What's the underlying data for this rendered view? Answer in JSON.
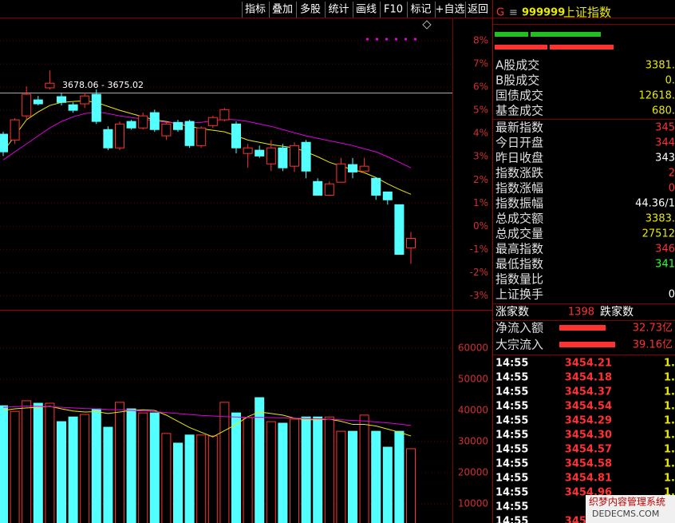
{
  "toolbar": [
    "指标",
    "叠加",
    "多股",
    "统计",
    "画线",
    "F10",
    "标记",
    "+自选",
    "返回"
  ],
  "chart_data": [
    {
      "type": "candlestick",
      "annotation": "3678.06 - 3675.02",
      "up_color": "#ff3232",
      "down_color": "#54ffff",
      "grid": true,
      "ylim": [
        -3.5,
        9
      ],
      "yticks": [
        {
          "value": 8,
          "label": "8%"
        },
        {
          "value": 7,
          "label": "7%"
        },
        {
          "value": 6,
          "label": "6%"
        },
        {
          "value": 5,
          "label": "5%"
        },
        {
          "value": 4,
          "label": "4%"
        },
        {
          "value": 3,
          "label": "3%"
        },
        {
          "value": 2,
          "label": "2%"
        },
        {
          "value": 1,
          "label": "1%"
        },
        {
          "value": 0,
          "label": "0%"
        },
        {
          "value": -1,
          "label": "-1%"
        },
        {
          "value": -2,
          "label": "-2%"
        },
        {
          "value": -3,
          "label": "-3%"
        }
      ],
      "open": [
        3.97,
        3.72,
        4.76,
        5.45,
        5.97,
        5.59,
        5.24,
        5.28,
        5.69,
        4.17,
        3.38,
        4.52,
        4.24,
        4.9,
        3.9,
        4.48,
        4.52,
        3.48,
        4.34,
        4.59,
        4.41,
        3.14,
        3.28,
        2.69,
        3.38,
        2.59,
        3.62,
        1.93,
        1.34,
        1.9,
        2.66,
        2.38,
        2.07,
        1.48,
        0.93,
        -0.93
      ],
      "close": [
        3.21,
        4.59,
        5.69,
        5.28,
        6.17,
        5.34,
        5.0,
        5.62,
        4.52,
        3.38,
        4.41,
        4.24,
        4.76,
        4.17,
        4.41,
        4.17,
        3.48,
        4.24,
        4.69,
        5.03,
        3.38,
        3.38,
        3.03,
        3.38,
        2.52,
        3.48,
        2.38,
        1.34,
        1.83,
        2.69,
        2.34,
        2.59,
        1.34,
        1.14,
        -1.21,
        -0.52
      ],
      "high": [
        4.07,
        4.66,
        6.03,
        5.62,
        6.72,
        5.76,
        5.34,
        5.76,
        5.9,
        4.31,
        4.52,
        4.59,
        4.9,
        5.03,
        4.48,
        4.59,
        4.59,
        4.31,
        4.76,
        5.1,
        4.52,
        3.55,
        3.48,
        3.72,
        3.55,
        3.62,
        3.72,
        2.07,
        1.93,
        2.95,
        2.95,
        2.95,
        2.07,
        1.48,
        0.93,
        -0.24
      ],
      "low": [
        3.03,
        3.55,
        4.59,
        5.21,
        5.9,
        5.21,
        4.9,
        5.1,
        4.41,
        3.28,
        3.28,
        4.17,
        4.17,
        4.07,
        3.72,
        4.07,
        3.38,
        3.38,
        4.24,
        4.52,
        3.14,
        2.52,
        2.95,
        2.38,
        2.38,
        2.34,
        2.07,
        1.34,
        1.34,
        1.9,
        2.07,
        2.38,
        1.14,
        0.93,
        -1.21,
        -1.62
      ],
      "series": [
        {
          "color": "#e8e800",
          "values": [
            3.21,
            3.9,
            4.59,
            4.93,
            5.21,
            5.34,
            5.38,
            5.41,
            5.34,
            5.17,
            5.0,
            4.86,
            4.72,
            4.59,
            4.52,
            4.41,
            4.31,
            4.21,
            4.14,
            4.07,
            3.9,
            3.72,
            3.62,
            3.52,
            3.45,
            3.38,
            3.21,
            3.0,
            2.76,
            2.59,
            2.45,
            2.31,
            2.1,
            1.83,
            1.59,
            1.38
          ]
        },
        {
          "color": "#e000e0",
          "values": [
            2.86,
            3.21,
            3.55,
            3.9,
            4.24,
            4.52,
            4.72,
            4.86,
            4.93,
            4.86,
            4.76,
            4.69,
            4.62,
            4.55,
            4.48,
            4.45,
            4.45,
            4.48,
            4.55,
            4.62,
            4.59,
            4.52,
            4.41,
            4.31,
            4.17,
            4.03,
            3.9,
            3.79,
            3.69,
            3.59,
            3.48,
            3.34,
            3.21,
            3.0,
            2.76,
            2.52
          ]
        }
      ]
    },
    {
      "type": "bar",
      "grid": true,
      "ylim": [
        0,
        70000
      ],
      "yticks": [
        60000,
        50000,
        40000,
        30000,
        20000,
        10000
      ],
      "values": [
        41500,
        39700,
        43100,
        42300,
        42300,
        36400,
        37900,
        38700,
        40500,
        34600,
        42600,
        40500,
        39200,
        39200,
        32600,
        29500,
        32100,
        32100,
        31800,
        42600,
        39200,
        37700,
        44100,
        36400,
        35900,
        37200,
        37900,
        37900,
        37900,
        33300,
        33300,
        38500,
        33300,
        28200,
        33300,
        27700
      ],
      "series": [
        {
          "color": "#e8e800",
          "values": [
            40000,
            40500,
            40800,
            41000,
            41300,
            40500,
            39800,
            39500,
            39600,
            39000,
            39500,
            40000,
            40200,
            40000,
            38500,
            36500,
            34500,
            33000,
            31500,
            33500,
            35500,
            38000,
            39500,
            39000,
            38500,
            37500,
            37000,
            37000,
            37200,
            36500,
            35500,
            35500,
            35000,
            34000,
            33000,
            31800
          ]
        },
        {
          "color": "#e000e0",
          "values": [
            41000,
            41200,
            41400,
            41300,
            41200,
            41000,
            40800,
            40600,
            40500,
            40300,
            40200,
            40000,
            39800,
            39600,
            39300,
            39000,
            38700,
            38400,
            38200,
            38000,
            37900,
            37800,
            37800,
            37700,
            37600,
            37500,
            37400,
            37300,
            37200,
            37000,
            36800,
            36600,
            36300,
            36000,
            35600,
            35200
          ]
        }
      ]
    }
  ],
  "quote": {
    "tag": "G",
    "menu": "≡",
    "code": "999999",
    "name": "上证指数",
    "rows": [
      {
        "label": "A股成交",
        "value": "3381.",
        "color": "#e8e800"
      },
      {
        "label": "B股成交",
        "value": "0.",
        "color": "#e8e800"
      },
      {
        "label": "国债成交",
        "value": "12618.",
        "color": "#e8e800"
      },
      {
        "label": "基金成交",
        "value": "680.",
        "color": "#e8e800"
      },
      {
        "label": "最新指数",
        "value": "345",
        "color": "#ff3232"
      },
      {
        "label": "今日开盘",
        "value": "344",
        "color": "#ff3232"
      },
      {
        "label": "昨日收盘",
        "value": "343",
        "color": "#ffffff"
      },
      {
        "label": "指数涨跌",
        "value": "2",
        "color": "#ff3232"
      },
      {
        "label": "指数涨幅",
        "value": "0",
        "color": "#ff3232"
      },
      {
        "label": "指数振幅",
        "value": "44.36/1",
        "color": "#ffffff"
      },
      {
        "label": "总成交额",
        "value": "3383.",
        "color": "#e8e800"
      },
      {
        "label": "总成交量",
        "value": "27512",
        "color": "#e8e800"
      },
      {
        "label": "最高指数",
        "value": "346",
        "color": "#ff3232"
      },
      {
        "label": "最低指数",
        "value": "341",
        "color": "#32ff32"
      },
      {
        "label": "指数量比"
      },
      {
        "label": "上证换手",
        "value": "0",
        "color": "#ffffff"
      }
    ],
    "up_label": "涨家数",
    "up_count": "1398",
    "down_label": "跌家数",
    "flows": [
      {
        "label": "净流入额",
        "value": "32.73亿"
      },
      {
        "label": "大宗流入",
        "value": "39.16亿"
      }
    ]
  },
  "ticks": [
    {
      "time": "14:55",
      "price": "3454.21",
      "vol": "1.0"
    },
    {
      "time": "14:55",
      "price": "3454.18",
      "vol": "1.9"
    },
    {
      "time": "14:55",
      "price": "3454.37",
      "vol": "1.4"
    },
    {
      "time": "14:55",
      "price": "3454.54",
      "vol": "1.3"
    },
    {
      "time": "14:55",
      "price": "3454.29",
      "vol": "1.3"
    },
    {
      "time": "14:55",
      "price": "3454.30",
      "vol": "1.5"
    },
    {
      "time": "14:55",
      "price": "3454.57",
      "vol": "1.9"
    },
    {
      "time": "14:55",
      "price": "3454.58",
      "vol": "1.7"
    },
    {
      "time": "14:55",
      "price": "3454.81",
      "vol": "1.8"
    },
    {
      "time": "14:55",
      "price": "3454.96",
      "vol": "1.7"
    },
    {
      "time": "14:55",
      "price": "345",
      "vol": "1."
    },
    {
      "time": "14:55",
      "price": "3454.80",
      "vol": "1."
    }
  ],
  "watermark": {
    "line1": "织梦内容管理系统",
    "line2": "DEDECMS.COM"
  }
}
